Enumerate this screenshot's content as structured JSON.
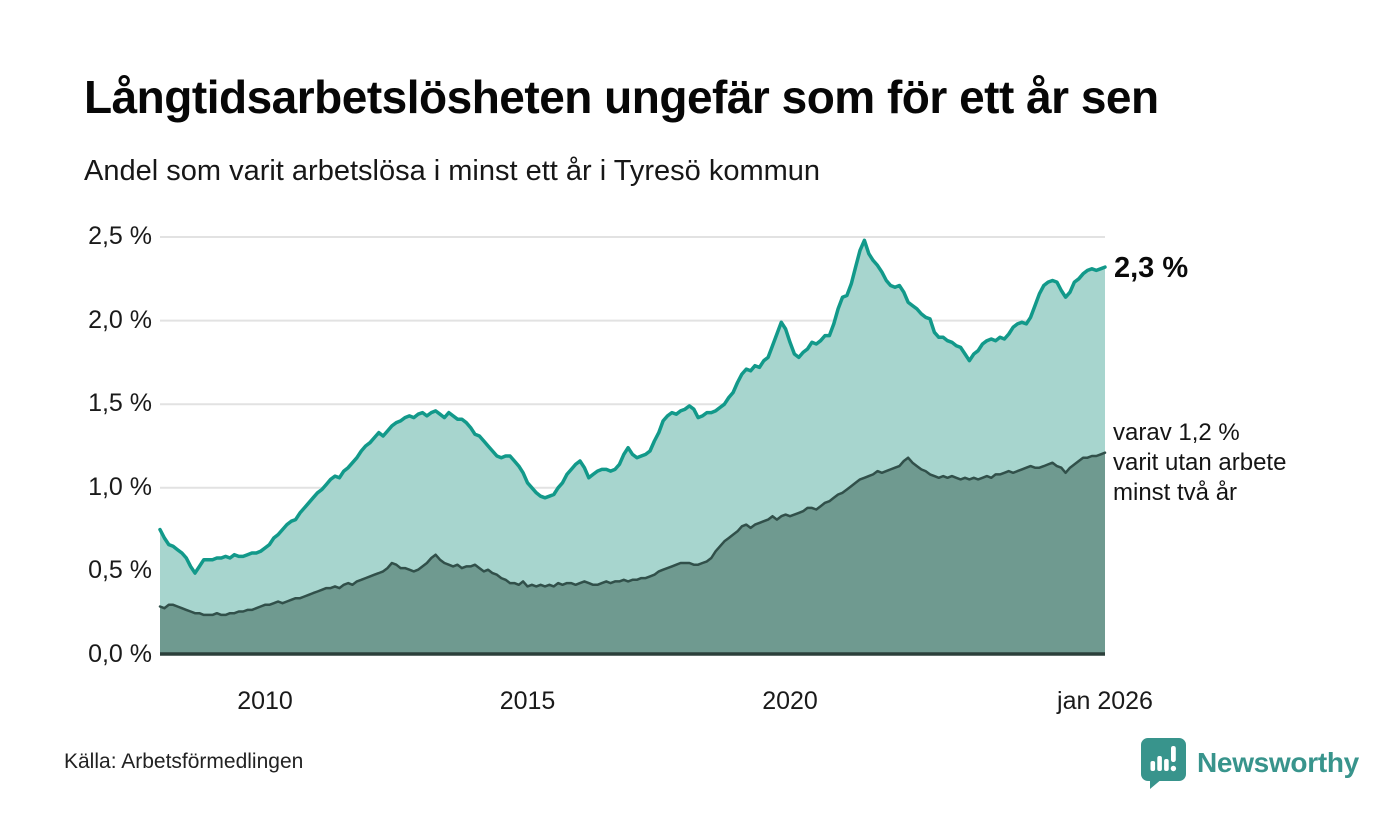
{
  "header": {
    "title": "Långtidsarbetslösheten ungefär som för ett år sen",
    "subtitle": "Andel som varit arbetslösa i minst ett år i Tyresö kommun"
  },
  "chart_data": {
    "type": "area",
    "title": "Andel som varit arbetslösa i minst ett år i Tyresö kommun",
    "unit": "%",
    "frequency": "monthly",
    "x_start": "2008-01",
    "x_end": "2026-01",
    "ylim": [
      0,
      2.5
    ],
    "grid": true,
    "legend": "none",
    "y_ticks": [
      {
        "value": 0.0,
        "label": "0,0 %"
      },
      {
        "value": 0.5,
        "label": "0,5 %"
      },
      {
        "value": 1.0,
        "label": "1,0 %"
      },
      {
        "value": 1.5,
        "label": "1,5 %"
      },
      {
        "value": 2.0,
        "label": "2,0 %"
      },
      {
        "value": 2.5,
        "label": "2,5 %"
      }
    ],
    "x_ticks": [
      {
        "index": 24,
        "label": "2010"
      },
      {
        "index": 84,
        "label": "2015"
      },
      {
        "index": 144,
        "label": "2020"
      },
      {
        "index": 216,
        "label": "jan 2026"
      }
    ],
    "series": [
      {
        "name": "Andel som varit arbetslösa minst ett år",
        "line_color": "#12998a",
        "fill_color": "#a7d5ce",
        "line_width": 3.5,
        "last_value_label": "2,3 %",
        "values": [
          0.75,
          0.7,
          0.66,
          0.65,
          0.63,
          0.61,
          0.58,
          0.53,
          0.49,
          0.53,
          0.57,
          0.57,
          0.57,
          0.58,
          0.58,
          0.59,
          0.58,
          0.6,
          0.59,
          0.59,
          0.6,
          0.61,
          0.61,
          0.62,
          0.64,
          0.66,
          0.7,
          0.72,
          0.75,
          0.78,
          0.8,
          0.81,
          0.85,
          0.88,
          0.91,
          0.94,
          0.97,
          0.99,
          1.02,
          1.05,
          1.07,
          1.06,
          1.1,
          1.12,
          1.15,
          1.18,
          1.22,
          1.25,
          1.27,
          1.3,
          1.33,
          1.31,
          1.34,
          1.37,
          1.39,
          1.4,
          1.42,
          1.43,
          1.42,
          1.44,
          1.45,
          1.43,
          1.45,
          1.46,
          1.44,
          1.42,
          1.45,
          1.43,
          1.41,
          1.41,
          1.39,
          1.36,
          1.32,
          1.31,
          1.28,
          1.25,
          1.22,
          1.19,
          1.18,
          1.19,
          1.19,
          1.16,
          1.13,
          1.09,
          1.03,
          1.0,
          0.97,
          0.95,
          0.94,
          0.95,
          0.96,
          1.0,
          1.03,
          1.08,
          1.11,
          1.14,
          1.16,
          1.12,
          1.06,
          1.08,
          1.1,
          1.11,
          1.11,
          1.1,
          1.11,
          1.14,
          1.2,
          1.24,
          1.2,
          1.18,
          1.19,
          1.2,
          1.22,
          1.28,
          1.33,
          1.4,
          1.43,
          1.45,
          1.44,
          1.46,
          1.47,
          1.49,
          1.47,
          1.42,
          1.43,
          1.45,
          1.45,
          1.46,
          1.48,
          1.5,
          1.54,
          1.57,
          1.63,
          1.68,
          1.71,
          1.7,
          1.73,
          1.72,
          1.76,
          1.78,
          1.85,
          1.92,
          1.99,
          1.95,
          1.87,
          1.8,
          1.78,
          1.81,
          1.83,
          1.87,
          1.86,
          1.88,
          1.91,
          1.91,
          1.98,
          2.07,
          2.14,
          2.15,
          2.22,
          2.32,
          2.42,
          2.48,
          2.4,
          2.36,
          2.33,
          2.29,
          2.24,
          2.21,
          2.2,
          2.21,
          2.17,
          2.11,
          2.09,
          2.07,
          2.04,
          2.02,
          2.01,
          1.93,
          1.9,
          1.9,
          1.88,
          1.87,
          1.85,
          1.84,
          1.8,
          1.76,
          1.8,
          1.82,
          1.86,
          1.88,
          1.89,
          1.88,
          1.9,
          1.89,
          1.92,
          1.96,
          1.98,
          1.99,
          1.98,
          2.02,
          2.09,
          2.16,
          2.21,
          2.23,
          2.24,
          2.23,
          2.18,
          2.14,
          2.17,
          2.23,
          2.25,
          2.28,
          2.3,
          2.31,
          2.3,
          2.31,
          2.32
        ]
      },
      {
        "name": "varav arbetslösa minst två år",
        "line_color": "#31504a",
        "fill_color": "#6f9a90",
        "line_width": 2.5,
        "last_value_label": "1,2 %",
        "values": [
          0.29,
          0.28,
          0.3,
          0.3,
          0.29,
          0.28,
          0.27,
          0.26,
          0.25,
          0.25,
          0.24,
          0.24,
          0.24,
          0.25,
          0.24,
          0.24,
          0.25,
          0.25,
          0.26,
          0.26,
          0.27,
          0.27,
          0.28,
          0.29,
          0.3,
          0.3,
          0.31,
          0.32,
          0.31,
          0.32,
          0.33,
          0.34,
          0.34,
          0.35,
          0.36,
          0.37,
          0.38,
          0.39,
          0.4,
          0.4,
          0.41,
          0.4,
          0.42,
          0.43,
          0.42,
          0.44,
          0.45,
          0.46,
          0.47,
          0.48,
          0.49,
          0.5,
          0.52,
          0.55,
          0.54,
          0.52,
          0.52,
          0.51,
          0.5,
          0.51,
          0.53,
          0.55,
          0.58,
          0.6,
          0.57,
          0.55,
          0.54,
          0.53,
          0.54,
          0.52,
          0.53,
          0.53,
          0.54,
          0.52,
          0.5,
          0.51,
          0.49,
          0.48,
          0.46,
          0.45,
          0.43,
          0.43,
          0.42,
          0.44,
          0.41,
          0.42,
          0.41,
          0.42,
          0.41,
          0.42,
          0.41,
          0.43,
          0.42,
          0.43,
          0.43,
          0.42,
          0.43,
          0.44,
          0.43,
          0.42,
          0.42,
          0.43,
          0.44,
          0.43,
          0.44,
          0.44,
          0.45,
          0.44,
          0.45,
          0.45,
          0.46,
          0.46,
          0.47,
          0.48,
          0.5,
          0.51,
          0.52,
          0.53,
          0.54,
          0.55,
          0.55,
          0.55,
          0.54,
          0.54,
          0.55,
          0.56,
          0.58,
          0.62,
          0.65,
          0.68,
          0.7,
          0.72,
          0.74,
          0.77,
          0.78,
          0.76,
          0.78,
          0.79,
          0.8,
          0.81,
          0.83,
          0.81,
          0.83,
          0.84,
          0.83,
          0.84,
          0.85,
          0.86,
          0.88,
          0.88,
          0.87,
          0.89,
          0.91,
          0.92,
          0.94,
          0.96,
          0.97,
          0.99,
          1.01,
          1.03,
          1.05,
          1.06,
          1.07,
          1.08,
          1.1,
          1.09,
          1.1,
          1.11,
          1.12,
          1.13,
          1.16,
          1.18,
          1.15,
          1.13,
          1.11,
          1.1,
          1.08,
          1.07,
          1.06,
          1.07,
          1.06,
          1.07,
          1.06,
          1.05,
          1.06,
          1.05,
          1.06,
          1.05,
          1.06,
          1.07,
          1.06,
          1.08,
          1.08,
          1.09,
          1.1,
          1.09,
          1.1,
          1.11,
          1.12,
          1.13,
          1.12,
          1.12,
          1.13,
          1.14,
          1.15,
          1.13,
          1.12,
          1.09,
          1.12,
          1.14,
          1.16,
          1.18,
          1.18,
          1.19,
          1.19,
          1.2,
          1.21
        ]
      }
    ],
    "annotations": {
      "total_label": "2,3 %",
      "breakdown_lines": [
        "varav 1,2 %",
        "varit utan arbete",
        "minst två år"
      ]
    }
  },
  "colors": {
    "background": "#ffffff",
    "gridline": "#e2e2e2",
    "baseline": "#2b3f3a",
    "upper_line": "#12998a",
    "upper_fill": "#a7d5ce",
    "lower_line": "#31504a",
    "lower_fill": "#6f9a90",
    "brand_teal": "#38948c"
  },
  "footer": {
    "source": "Källa: Arbetsförmedlingen",
    "brand": "Newsworthy"
  }
}
